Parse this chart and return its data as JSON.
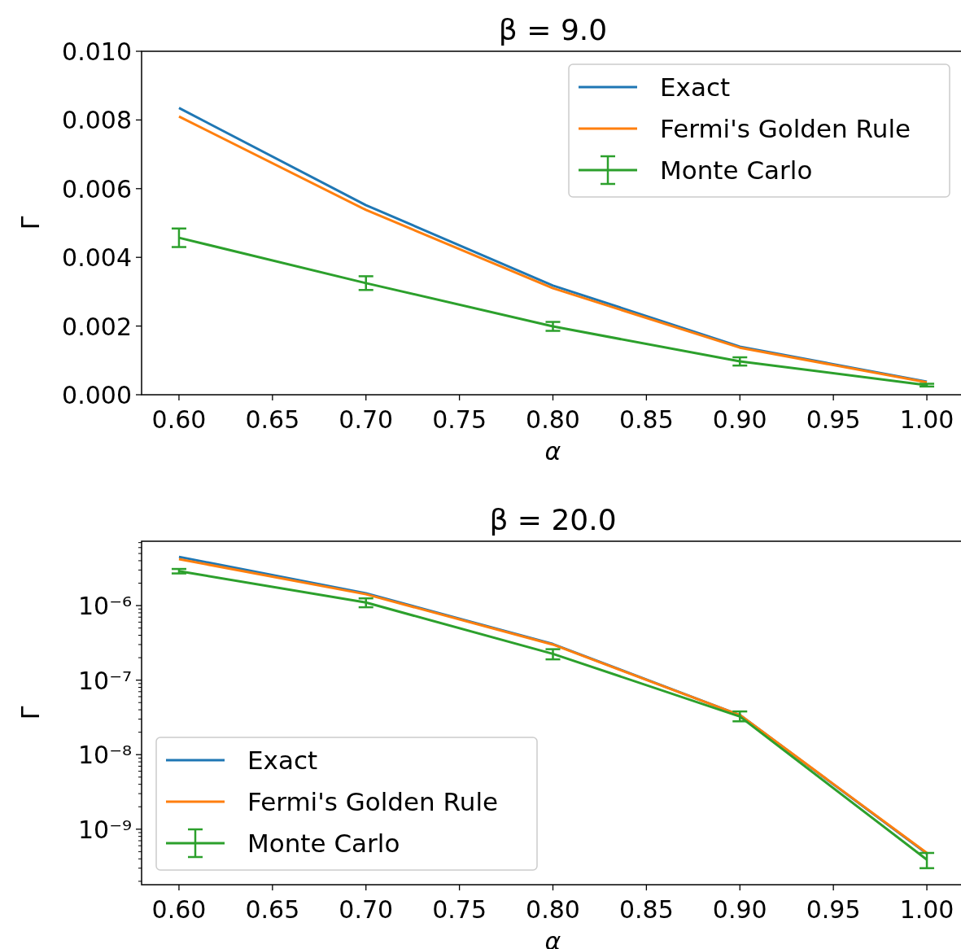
{
  "chart_data": [
    {
      "type": "line",
      "title": "β = 9.0",
      "xlabel": "α",
      "ylabel": "Γ",
      "x": [
        0.6,
        0.7,
        0.8,
        0.9,
        1.0
      ],
      "series": [
        {
          "name": "Exact",
          "color": "#1f77b4",
          "values": [
            0.00835,
            0.00552,
            0.00318,
            0.0014,
            0.00038
          ]
        },
        {
          "name": "Fermi's Golden Rule",
          "color": "#ff7f0e",
          "values": [
            0.0081,
            0.00538,
            0.0031,
            0.00137,
            0.00036
          ]
        },
        {
          "name": "Monte Carlo",
          "color": "#2ca02c",
          "values": [
            0.00457,
            0.00325,
            0.00199,
            0.00097,
            0.00028
          ],
          "errors": [
            0.00027,
            0.0002,
            0.00013,
            0.00012,
            4e-05
          ]
        }
      ],
      "xlim": [
        0.58,
        1.02
      ],
      "xticks": [
        {
          "value": 0.6,
          "label": "0.60"
        },
        {
          "value": 0.65,
          "label": "0.65"
        },
        {
          "value": 0.7,
          "label": "0.70"
        },
        {
          "value": 0.75,
          "label": "0.75"
        },
        {
          "value": 0.8,
          "label": "0.80"
        },
        {
          "value": 0.85,
          "label": "0.85"
        },
        {
          "value": 0.9,
          "label": "0.90"
        },
        {
          "value": 0.95,
          "label": "0.95"
        },
        {
          "value": 1.0,
          "label": "1.00"
        }
      ],
      "ylim": [
        0,
        0.01
      ],
      "yticks": [
        {
          "value": 0,
          "label": "0.000"
        },
        {
          "value": 0.002,
          "label": "0.002"
        },
        {
          "value": 0.004,
          "label": "0.004"
        },
        {
          "value": 0.006,
          "label": "0.006"
        },
        {
          "value": 0.008,
          "label": "0.008"
        },
        {
          "value": 0.01,
          "label": "0.010"
        }
      ],
      "grid": false,
      "legend": "top right",
      "marker": "none",
      "line_style": "solid"
    },
    {
      "type": "line",
      "title": "β = 20.0",
      "xlabel": "α",
      "ylabel": "Γ",
      "x": [
        0.6,
        0.7,
        0.8,
        0.9,
        1.0
      ],
      "series": [
        {
          "name": "Exact",
          "color": "#1f77b4",
          "values": [
            4.5e-06,
            1.46e-06,
            3.05e-07,
            3.4e-08,
            4.7e-10
          ]
        },
        {
          "name": "Fermi's Golden Rule",
          "color": "#ff7f0e",
          "values": [
            4.2e-06,
            1.42e-06,
            3e-07,
            3.4e-08,
            4.8e-10
          ]
        },
        {
          "name": "Monte Carlo",
          "color": "#2ca02c",
          "values": [
            2.9e-06,
            1.1e-06,
            2.25e-07,
            3.25e-08,
            3.9e-10
          ],
          "errors": [
            [
              2.7e-06,
              3.1e-06
            ],
            [
              9.5e-07,
              1.25e-06
            ],
            [
              1.9e-07,
              2.6e-07
            ],
            [
              2.8e-08,
              3.8e-08
            ],
            [
              3e-10,
              4.8e-10
            ]
          ]
        }
      ],
      "xlim": [
        0.58,
        1.02
      ],
      "xticks": [
        {
          "value": 0.6,
          "label": "0.60"
        },
        {
          "value": 0.65,
          "label": "0.65"
        },
        {
          "value": 0.7,
          "label": "0.70"
        },
        {
          "value": 0.75,
          "label": "0.75"
        },
        {
          "value": 0.8,
          "label": "0.80"
        },
        {
          "value": 0.85,
          "label": "0.85"
        },
        {
          "value": 0.9,
          "label": "0.90"
        },
        {
          "value": 0.95,
          "label": "0.95"
        },
        {
          "value": 1.0,
          "label": "1.00"
        }
      ],
      "ylim": [
        1.8e-10,
        7.3e-06
      ],
      "log": "y",
      "yticks": [
        {
          "value": 2e-10,
          "label": null
        },
        {
          "value": 3e-10,
          "label": null
        },
        {
          "value": 4e-10,
          "label": null
        },
        {
          "value": 5e-10,
          "label": null
        },
        {
          "value": 6e-10,
          "label": null
        },
        {
          "value": 7e-10,
          "label": null
        },
        {
          "value": 8e-10,
          "label": null
        },
        {
          "value": 9e-10,
          "label": null
        },
        {
          "value": 1e-09,
          "label": "10⁻⁹"
        },
        {
          "value": 2e-09,
          "label": null
        },
        {
          "value": 3e-09,
          "label": null
        },
        {
          "value": 4e-09,
          "label": null
        },
        {
          "value": 5e-09,
          "label": null
        },
        {
          "value": 6e-09,
          "label": null
        },
        {
          "value": 7e-09,
          "label": null
        },
        {
          "value": 8e-09,
          "label": null
        },
        {
          "value": 9e-09,
          "label": null
        },
        {
          "value": 1e-08,
          "label": "10⁻⁸"
        },
        {
          "value": 2e-08,
          "label": null
        },
        {
          "value": 3e-08,
          "label": null
        },
        {
          "value": 4e-08,
          "label": null
        },
        {
          "value": 5e-08,
          "label": null
        },
        {
          "value": 6e-08,
          "label": null
        },
        {
          "value": 7e-08,
          "label": null
        },
        {
          "value": 8e-08,
          "label": null
        },
        {
          "value": 9e-08,
          "label": null
        },
        {
          "value": 1e-07,
          "label": "10⁻⁷"
        },
        {
          "value": 2e-07,
          "label": null
        },
        {
          "value": 3e-07,
          "label": null
        },
        {
          "value": 4e-07,
          "label": null
        },
        {
          "value": 5e-07,
          "label": null
        },
        {
          "value": 6e-07,
          "label": null
        },
        {
          "value": 7e-07,
          "label": null
        },
        {
          "value": 8e-07,
          "label": null
        },
        {
          "value": 9e-07,
          "label": null
        },
        {
          "value": 1e-06,
          "label": "10⁻⁶"
        },
        {
          "value": 2e-06,
          "label": null
        },
        {
          "value": 3e-06,
          "label": null
        },
        {
          "value": 4e-06,
          "label": null
        },
        {
          "value": 5e-06,
          "label": null
        },
        {
          "value": 6e-06,
          "label": null
        },
        {
          "value": 7e-06,
          "label": null
        }
      ],
      "grid": false,
      "legend": "bottom left",
      "marker": "none",
      "line_style": "solid"
    }
  ]
}
